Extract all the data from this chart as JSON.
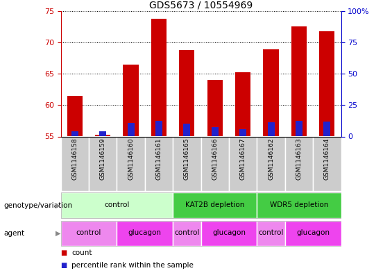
{
  "title": "GDS5673 / 10554969",
  "samples": [
    "GSM1146158",
    "GSM1146159",
    "GSM1146160",
    "GSM1146161",
    "GSM1146165",
    "GSM1146166",
    "GSM1146167",
    "GSM1146162",
    "GSM1146163",
    "GSM1146164"
  ],
  "count_values": [
    61.5,
    55.3,
    66.5,
    73.8,
    68.8,
    64.0,
    65.2,
    68.9,
    72.5,
    71.8
  ],
  "percentile_values": [
    55.8,
    55.8,
    57.2,
    57.5,
    57.0,
    56.5,
    56.2,
    57.3,
    57.5,
    57.4
  ],
  "ylim_left": [
    55,
    75
  ],
  "ylim_right": [
    0,
    100
  ],
  "yticks_left": [
    55,
    60,
    65,
    70,
    75
  ],
  "yticks_right": [
    0,
    25,
    50,
    75,
    100
  ],
  "bar_bottom": 55,
  "bar_color_red": "#cc0000",
  "bar_color_blue": "#2222cc",
  "bar_width": 0.55,
  "blue_bar_width": 0.25,
  "genotype_groups": [
    {
      "label": "control",
      "start": 0,
      "end": 4,
      "color": "#ccffcc"
    },
    {
      "label": "KAT2B depletion",
      "start": 4,
      "end": 7,
      "color": "#44cc44"
    },
    {
      "label": "WDR5 depletion",
      "start": 7,
      "end": 10,
      "color": "#44cc44"
    }
  ],
  "agent_groups": [
    {
      "label": "control",
      "start": 0,
      "end": 2,
      "color": "#ee88ee"
    },
    {
      "label": "glucagon",
      "start": 2,
      "end": 4,
      "color": "#ee44ee"
    },
    {
      "label": "control",
      "start": 4,
      "end": 5,
      "color": "#ee88ee"
    },
    {
      "label": "glucagon",
      "start": 5,
      "end": 7,
      "color": "#ee44ee"
    },
    {
      "label": "control",
      "start": 7,
      "end": 8,
      "color": "#ee88ee"
    },
    {
      "label": "glucagon",
      "start": 8,
      "end": 10,
      "color": "#ee44ee"
    }
  ],
  "tick_color_left": "#cc0000",
  "tick_color_right": "#0000cc",
  "legend_items": [
    {
      "label": "count",
      "color": "#cc0000"
    },
    {
      "label": "percentile rank within the sample",
      "color": "#2222cc"
    }
  ],
  "sample_bg_color": "#cccccc",
  "genotype_label": "genotype/variation",
  "agent_label": "agent"
}
